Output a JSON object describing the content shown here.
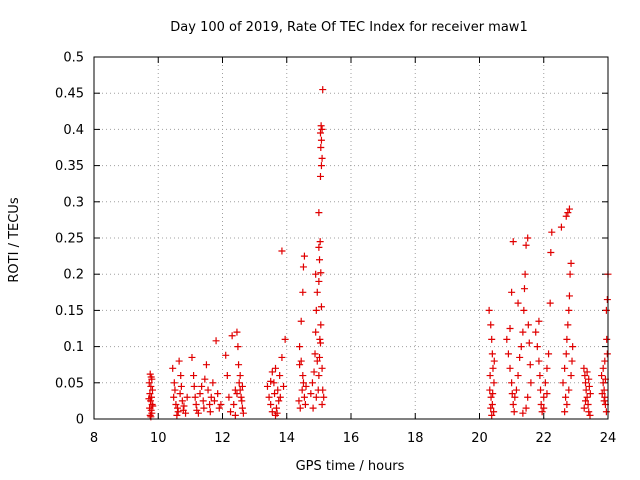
{
  "chart_data": {
    "type": "scatter",
    "title": "Day 100 of 2019, Rate Of TEC Index for receiver maw1",
    "xlabel": "GPS time / hours",
    "ylabel": "ROTI / TECUs",
    "xlim": [
      8,
      24
    ],
    "ylim": [
      0,
      0.5
    ],
    "xticks": [
      "8",
      "10",
      "12",
      "14",
      "16",
      "18",
      "20",
      "22",
      "24"
    ],
    "yticks": [
      "0",
      "0.05",
      "0.1",
      "0.15",
      "0.2",
      "0.25",
      "0.3",
      "0.35",
      "0.4",
      "0.45",
      "0.5"
    ],
    "grid": true,
    "marker": "+",
    "color": "#e00000",
    "series": [
      {
        "name": "maw1",
        "points": [
          [
            9.75,
            0.062
          ],
          [
            9.78,
            0.058
          ],
          [
            9.8,
            0.055
          ],
          [
            9.72,
            0.05
          ],
          [
            9.77,
            0.045
          ],
          [
            9.82,
            0.04
          ],
          [
            9.74,
            0.035
          ],
          [
            9.79,
            0.03
          ],
          [
            9.76,
            0.025
          ],
          [
            9.81,
            0.02
          ],
          [
            9.73,
            0.015
          ],
          [
            9.78,
            0.012
          ],
          [
            9.8,
            0.008
          ],
          [
            9.75,
            0.005
          ],
          [
            9.77,
            0.003
          ],
          [
            9.83,
            0.018
          ],
          [
            9.71,
            0.028
          ],
          [
            10.45,
            0.07
          ],
          [
            10.5,
            0.05
          ],
          [
            10.52,
            0.04
          ],
          [
            10.48,
            0.03
          ],
          [
            10.55,
            0.02
          ],
          [
            10.6,
            0.015
          ],
          [
            10.62,
            0.01
          ],
          [
            10.65,
            0.08
          ],
          [
            10.7,
            0.06
          ],
          [
            10.72,
            0.045
          ],
          [
            10.68,
            0.035
          ],
          [
            10.75,
            0.025
          ],
          [
            10.78,
            0.012
          ],
          [
            10.8,
            0.018
          ],
          [
            10.85,
            0.008
          ],
          [
            10.58,
            0.005
          ],
          [
            10.9,
            0.03
          ],
          [
            11.05,
            0.085
          ],
          [
            11.1,
            0.06
          ],
          [
            11.12,
            0.045
          ],
          [
            11.15,
            0.03
          ],
          [
            11.18,
            0.02
          ],
          [
            11.2,
            0.012
          ],
          [
            11.25,
            0.008
          ],
          [
            11.3,
            0.035
          ],
          [
            11.35,
            0.045
          ],
          [
            11.4,
            0.025
          ],
          [
            11.42,
            0.015
          ],
          [
            11.45,
            0.055
          ],
          [
            11.5,
            0.075
          ],
          [
            11.55,
            0.04
          ],
          [
            11.6,
            0.02
          ],
          [
            11.62,
            0.01
          ],
          [
            11.65,
            0.03
          ],
          [
            11.7,
            0.05
          ],
          [
            11.75,
            0.025
          ],
          [
            11.8,
            0.108
          ],
          [
            11.85,
            0.035
          ],
          [
            11.9,
            0.015
          ],
          [
            11.95,
            0.02
          ],
          [
            12.1,
            0.088
          ],
          [
            12.15,
            0.06
          ],
          [
            12.2,
            0.03
          ],
          [
            12.25,
            0.01
          ],
          [
            12.3,
            0.115
          ],
          [
            12.35,
            0.02
          ],
          [
            12.4,
            0.04
          ],
          [
            12.45,
            0.12
          ],
          [
            12.48,
            0.1
          ],
          [
            12.5,
            0.075
          ],
          [
            12.52,
            0.05
          ],
          [
            12.55,
            0.04
          ],
          [
            12.58,
            0.03
          ],
          [
            12.6,
            0.025
          ],
          [
            12.62,
            0.015
          ],
          [
            12.65,
            0.008
          ],
          [
            12.55,
            0.06
          ],
          [
            12.45,
            0.035
          ],
          [
            12.62,
            0.045
          ],
          [
            12.4,
            0.005
          ],
          [
            13.4,
            0.045
          ],
          [
            13.45,
            0.03
          ],
          [
            13.5,
            0.02
          ],
          [
            13.55,
            0.01
          ],
          [
            13.6,
            0.05
          ],
          [
            13.62,
            0.035
          ],
          [
            13.65,
            0.07
          ],
          [
            13.68,
            0.015
          ],
          [
            13.7,
            0.008
          ],
          [
            13.72,
            0.04
          ],
          [
            13.75,
            0.025
          ],
          [
            13.78,
            0.06
          ],
          [
            13.8,
            0.03
          ],
          [
            13.85,
            0.085
          ],
          [
            13.9,
            0.045
          ],
          [
            13.95,
            0.11
          ],
          [
            13.55,
            0.065
          ],
          [
            13.5,
            0.052
          ],
          [
            13.65,
            0.005
          ],
          [
            14.4,
            0.075
          ],
          [
            14.45,
            0.08
          ],
          [
            14.5,
            0.06
          ],
          [
            14.52,
            0.05
          ],
          [
            14.48,
            0.04
          ],
          [
            14.55,
            0.03
          ],
          [
            14.58,
            0.02
          ],
          [
            14.4,
            0.1
          ],
          [
            14.45,
            0.135
          ],
          [
            14.5,
            0.175
          ],
          [
            14.52,
            0.21
          ],
          [
            14.55,
            0.225
          ],
          [
            14.6,
            0.045
          ],
          [
            14.38,
            0.025
          ],
          [
            14.42,
            0.015
          ],
          [
            13.85,
            0.232
          ],
          [
            14.75,
            0.035
          ],
          [
            14.8,
            0.05
          ],
          [
            14.85,
            0.065
          ],
          [
            14.88,
            0.09
          ],
          [
            14.9,
            0.12
          ],
          [
            14.92,
            0.15
          ],
          [
            14.95,
            0.175
          ],
          [
            14.9,
            0.2
          ],
          [
            14.92,
            0.03
          ],
          [
            14.98,
            0.04
          ],
          [
            15.0,
            0.06
          ],
          [
            15.02,
            0.085
          ],
          [
            15.05,
            0.105
          ],
          [
            15.06,
            0.13
          ],
          [
            15.08,
            0.155
          ],
          [
            15.0,
            0.19
          ],
          [
            15.02,
            0.22
          ],
          [
            15.04,
            0.245
          ],
          [
            15.0,
            0.285
          ],
          [
            15.05,
            0.335
          ],
          [
            15.08,
            0.35
          ],
          [
            15.1,
            0.36
          ],
          [
            15.06,
            0.375
          ],
          [
            15.08,
            0.385
          ],
          [
            15.05,
            0.395
          ],
          [
            15.1,
            0.4
          ],
          [
            15.07,
            0.405
          ],
          [
            15.12,
            0.455
          ],
          [
            15.1,
            0.02
          ],
          [
            14.82,
            0.015
          ],
          [
            15.15,
            0.03
          ],
          [
            15.1,
            0.07
          ],
          [
            15.03,
            0.11
          ],
          [
            14.95,
            0.08
          ],
          [
            15.12,
            0.04
          ],
          [
            15.0,
            0.237
          ],
          [
            15.06,
            0.202
          ],
          [
            20.3,
            0.15
          ],
          [
            20.35,
            0.13
          ],
          [
            20.38,
            0.11
          ],
          [
            20.4,
            0.09
          ],
          [
            20.42,
            0.07
          ],
          [
            20.45,
            0.05
          ],
          [
            20.32,
            0.04
          ],
          [
            20.36,
            0.03
          ],
          [
            20.4,
            0.02
          ],
          [
            20.44,
            0.01
          ],
          [
            20.38,
            0.005
          ],
          [
            20.33,
            0.06
          ],
          [
            20.46,
            0.08
          ],
          [
            20.41,
            0.035
          ],
          [
            20.35,
            0.015
          ],
          [
            20.85,
            0.11
          ],
          [
            20.9,
            0.09
          ],
          [
            20.95,
            0.07
          ],
          [
            21.0,
            0.05
          ],
          [
            21.02,
            0.035
          ],
          [
            21.05,
            0.02
          ],
          [
            21.08,
            0.01
          ],
          [
            21.1,
            0.03
          ],
          [
            21.15,
            0.04
          ],
          [
            21.2,
            0.06
          ],
          [
            21.25,
            0.085
          ],
          [
            21.3,
            0.1
          ],
          [
            21.35,
            0.12
          ],
          [
            21.38,
            0.15
          ],
          [
            21.4,
            0.18
          ],
          [
            21.42,
            0.2
          ],
          [
            21.45,
            0.24
          ],
          [
            21.5,
            0.25
          ],
          [
            21.52,
            0.13
          ],
          [
            21.55,
            0.105
          ],
          [
            21.58,
            0.075
          ],
          [
            21.6,
            0.05
          ],
          [
            21.5,
            0.03
          ],
          [
            21.45,
            0.015
          ],
          [
            21.35,
            0.008
          ],
          [
            21.0,
            0.175
          ],
          [
            21.05,
            0.245
          ],
          [
            21.2,
            0.16
          ],
          [
            20.95,
            0.125
          ],
          [
            21.75,
            0.12
          ],
          [
            21.8,
            0.1
          ],
          [
            21.85,
            0.08
          ],
          [
            21.88,
            0.06
          ],
          [
            21.9,
            0.04
          ],
          [
            21.92,
            0.02
          ],
          [
            21.95,
            0.01
          ],
          [
            22.0,
            0.03
          ],
          [
            22.05,
            0.05
          ],
          [
            22.1,
            0.07
          ],
          [
            22.15,
            0.09
          ],
          [
            22.2,
            0.16
          ],
          [
            22.22,
            0.23
          ],
          [
            22.25,
            0.258
          ],
          [
            22.1,
            0.035
          ],
          [
            21.85,
            0.135
          ],
          [
            22.0,
            0.015
          ],
          [
            22.55,
            0.265
          ],
          [
            22.6,
            0.05
          ],
          [
            22.65,
            0.07
          ],
          [
            22.7,
            0.09
          ],
          [
            22.72,
            0.11
          ],
          [
            22.75,
            0.13
          ],
          [
            22.78,
            0.15
          ],
          [
            22.8,
            0.17
          ],
          [
            22.82,
            0.2
          ],
          [
            22.85,
            0.215
          ],
          [
            22.7,
            0.28
          ],
          [
            22.75,
            0.285
          ],
          [
            22.8,
            0.29
          ],
          [
            22.68,
            0.03
          ],
          [
            22.72,
            0.02
          ],
          [
            22.78,
            0.04
          ],
          [
            22.85,
            0.06
          ],
          [
            22.88,
            0.08
          ],
          [
            22.9,
            0.1
          ],
          [
            22.65,
            0.01
          ],
          [
            23.25,
            0.07
          ],
          [
            23.28,
            0.06
          ],
          [
            23.3,
            0.05
          ],
          [
            23.32,
            0.04
          ],
          [
            23.35,
            0.03
          ],
          [
            23.38,
            0.02
          ],
          [
            23.4,
            0.01
          ],
          [
            23.42,
            0.045
          ],
          [
            23.45,
            0.035
          ],
          [
            23.3,
            0.025
          ],
          [
            23.4,
            0.055
          ],
          [
            23.35,
            0.065
          ],
          [
            23.26,
            0.015
          ],
          [
            23.44,
            0.005
          ],
          [
            23.8,
            0.06
          ],
          [
            23.85,
            0.05
          ],
          [
            23.88,
            0.04
          ],
          [
            23.9,
            0.03
          ],
          [
            23.92,
            0.02
          ],
          [
            23.95,
            0.01
          ],
          [
            23.85,
            0.07
          ],
          [
            23.9,
            0.08
          ],
          [
            23.95,
            0.15
          ],
          [
            23.98,
            0.165
          ],
          [
            24.0,
            0.2
          ],
          [
            23.82,
            0.035
          ],
          [
            23.88,
            0.025
          ],
          [
            23.98,
            0.09
          ],
          [
            23.92,
            0.055
          ],
          [
            23.96,
            0.11
          ]
        ]
      }
    ]
  }
}
